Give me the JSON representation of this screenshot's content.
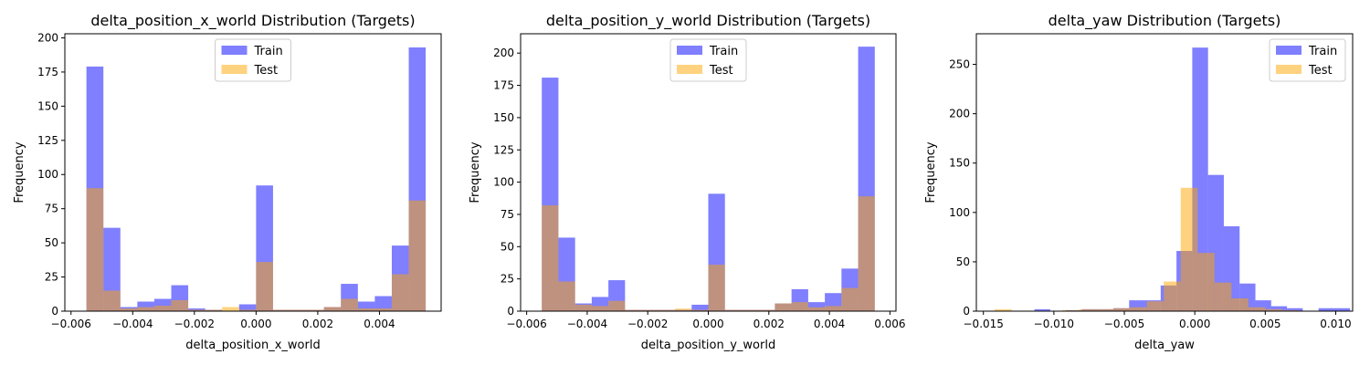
{
  "colors": {
    "train": "#0000ff",
    "test": "#ffa500"
  },
  "chart_data": [
    {
      "type": "bar",
      "title": "delta_position_x_world Distribution (Targets)",
      "xlabel": "delta_position_x_world",
      "ylabel": "Frequency",
      "xlim": [
        -0.0062,
        0.006
      ],
      "ylim": [
        0,
        203
      ],
      "xticks": [
        -0.006,
        -0.004,
        -0.002,
        0.0,
        0.002,
        0.004
      ],
      "xtick_labels": [
        "−0.006",
        "−0.004",
        "−0.002",
        "0.000",
        "0.002",
        "0.004"
      ],
      "yticks": [
        0,
        25,
        50,
        75,
        100,
        125,
        150,
        175,
        200
      ],
      "legend": {
        "placement": "upper center",
        "entries": [
          "Train",
          "Test"
        ]
      },
      "series": [
        {
          "name": "Train",
          "bin_start": -0.0055,
          "bin_width": 0.00055,
          "values": [
            179,
            61,
            3,
            7,
            9,
            19,
            2,
            1,
            0,
            5,
            92,
            1,
            1,
            1,
            3,
            20,
            7,
            11,
            48,
            193
          ]
        },
        {
          "name": "Test",
          "bin_start": -0.0055,
          "bin_width": 0.00055,
          "values": [
            90,
            15,
            2,
            3,
            4,
            8,
            1,
            1,
            3,
            1,
            36,
            1,
            1,
            1,
            3,
            9,
            2,
            2,
            27,
            81
          ]
        }
      ]
    },
    {
      "type": "bar",
      "title": "delta_position_y_world Distribution (Targets)",
      "xlabel": "delta_position_y_world",
      "ylabel": "Frequency",
      "xlim": [
        -0.0062,
        0.0062
      ],
      "ylim": [
        0,
        215
      ],
      "xticks": [
        -0.006,
        -0.004,
        -0.002,
        0.0,
        0.002,
        0.004,
        0.006
      ],
      "xtick_labels": [
        "−0.006",
        "−0.004",
        "−0.002",
        "0.000",
        "0.002",
        "0.004",
        "0.006"
      ],
      "yticks": [
        0,
        25,
        50,
        75,
        100,
        125,
        150,
        175,
        200
      ],
      "legend": {
        "placement": "upper center",
        "entries": [
          "Train",
          "Test"
        ]
      },
      "series": [
        {
          "name": "Train",
          "bin_start": -0.0055,
          "bin_width": 0.00055,
          "values": [
            181,
            57,
            6,
            11,
            24,
            1,
            1,
            1,
            1,
            5,
            91,
            1,
            1,
            1,
            6,
            17,
            7,
            14,
            33,
            205
          ]
        },
        {
          "name": "Test",
          "bin_start": -0.0055,
          "bin_width": 0.00055,
          "values": [
            82,
            23,
            5,
            4,
            8,
            1,
            1,
            1,
            2,
            1,
            36,
            1,
            1,
            1,
            6,
            7,
            3,
            4,
            18,
            89
          ]
        }
      ]
    },
    {
      "type": "bar",
      "title": "delta_yaw Distribution (Targets)",
      "xlabel": "delta_yaw",
      "ylabel": "Frequency",
      "xlim": [
        -0.0155,
        0.0112
      ],
      "ylim": [
        0,
        281
      ],
      "xticks": [
        -0.015,
        -0.01,
        -0.005,
        0.0,
        0.005,
        0.01
      ],
      "xtick_labels": [
        "−0.015",
        "−0.010",
        "−0.005",
        "0.000",
        "0.005",
        "0.010"
      ],
      "yticks": [
        0,
        50,
        100,
        150,
        200,
        250
      ],
      "legend": {
        "placement": "upper right",
        "entries": [
          "Train",
          "Test"
        ]
      },
      "series": [
        {
          "name": "Train",
          "bin_start": -0.0125,
          "bin_width": 0.00112,
          "values": [
            0,
            2,
            0,
            1,
            2,
            2,
            3,
            11,
            11,
            26,
            61,
            267,
            138,
            86,
            28,
            11,
            5,
            3,
            0,
            3,
            3
          ]
        },
        {
          "name": "Test",
          "bin_start": -0.0142,
          "bin_width": 0.0012,
          "values": [
            2,
            0,
            0,
            0,
            1,
            2,
            2,
            3,
            4,
            10,
            30,
            125,
            59,
            29,
            13,
            4,
            2,
            1,
            0,
            0
          ]
        }
      ]
    }
  ]
}
